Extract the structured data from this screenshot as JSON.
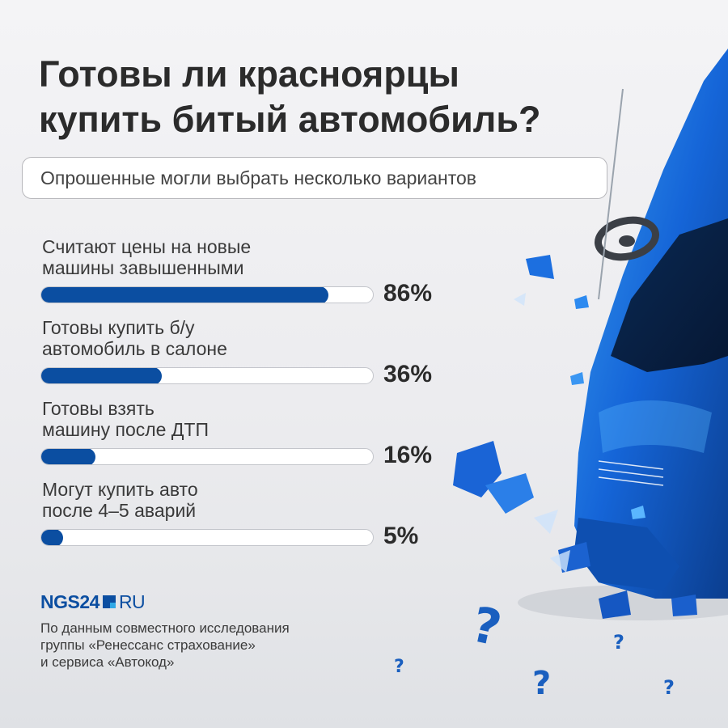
{
  "title_line1": "Готовы ли красноярцы",
  "title_line2": "купить битый автомобиль?",
  "subtitle": "Опрошенные могли выбрать несколько вариантов",
  "chart_data": {
    "type": "bar",
    "orientation": "horizontal",
    "categories": [
      "Считают цены на новые машины завышенными",
      "Готовы купить б/у автомобиль в салоне",
      "Готовы взять машину после ДТП",
      "Могут купить авто после 4–5 аварий"
    ],
    "category_lines": [
      [
        "Считают цены на новые",
        "машины завышенными"
      ],
      [
        "Готовы купить б/у",
        "автомобиль в салоне"
      ],
      [
        "Готовы взять",
        "машину после ДТП"
      ],
      [
        "Могут купить авто",
        "после 4–5 аварий"
      ]
    ],
    "values": [
      86,
      36,
      16,
      5
    ],
    "value_labels": [
      "86%",
      "36%",
      "16%",
      "5%"
    ],
    "xlim": [
      0,
      100
    ],
    "bar_color": "#0b4ea1",
    "track_color": "#ffffff"
  },
  "logo": {
    "brand": "NGS24",
    "domain": "RU"
  },
  "source_lines": [
    "По данным совместного исследования",
    "группы «Ренессанс страхование»",
    "и сервиса «Автокод»"
  ],
  "illustration": "crashed-blue-car",
  "decor_icon": "question-mark-icon"
}
